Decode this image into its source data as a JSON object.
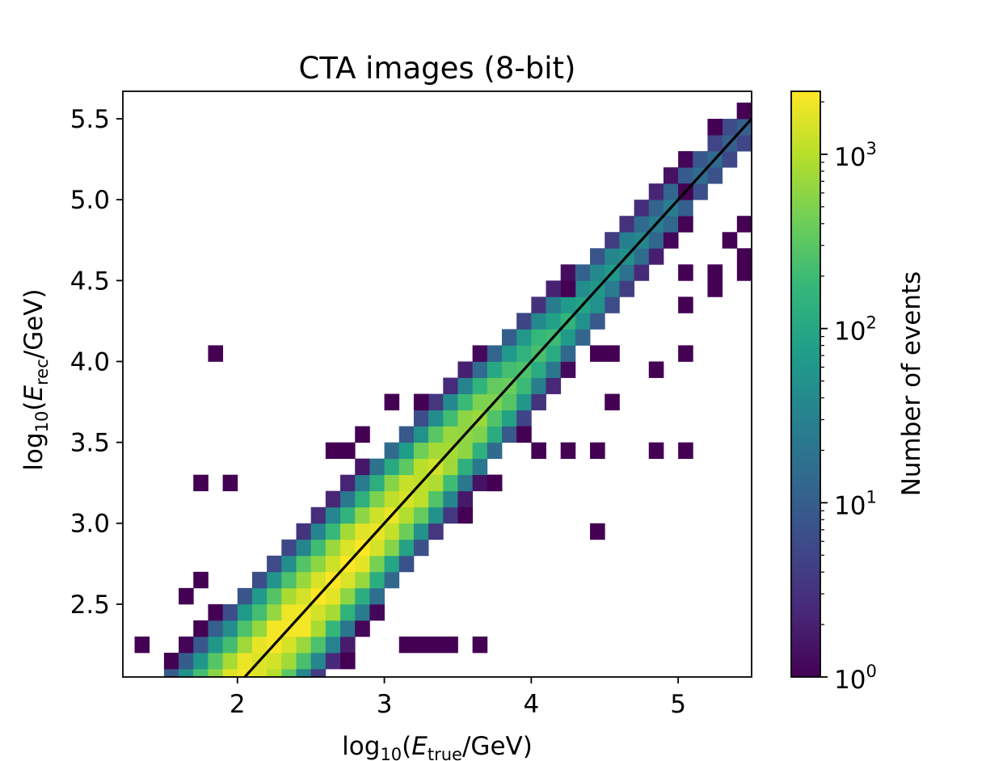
{
  "chart_data": {
    "type": "heatmap",
    "title": "CTA images (8-bit)",
    "xlabel": {
      "pre": "log",
      "sub1": "10",
      "open": "(",
      "var": "E",
      "sub2": "true",
      "post": "/GeV)"
    },
    "ylabel": {
      "pre": "log",
      "sub1": "10",
      "open": "(",
      "var": "E",
      "sub2": "rec",
      "post": "/GeV)"
    },
    "xlim": [
      1.22,
      5.5
    ],
    "ylim": [
      2.05,
      5.67
    ],
    "x_ticks": [
      2,
      3,
      4,
      5
    ],
    "x_tick_labels": [
      "2",
      "3",
      "4",
      "5"
    ],
    "y_ticks": [
      2.5,
      3.0,
      3.5,
      4.0,
      4.5,
      5.0,
      5.5
    ],
    "y_tick_labels": [
      "2.5",
      "3.0",
      "3.5",
      "4.0",
      "4.5",
      "5.0",
      "5.5"
    ],
    "bin_size": 0.1,
    "reference_line": {
      "x": [
        2.03,
        5.5
      ],
      "y": [
        2.03,
        5.5
      ],
      "color": "#000000"
    },
    "colorbar": {
      "label": "Number of events",
      "scale": "log",
      "colormap": "viridis",
      "range": [
        1,
        2300
      ],
      "ticks": [
        1,
        10,
        100,
        1000
      ],
      "tick_labels": [
        {
          "base": "10",
          "exp": "0"
        },
        {
          "base": "10",
          "exp": "1"
        },
        {
          "base": "10",
          "exp": "2"
        },
        {
          "base": "10",
          "exp": "3"
        }
      ]
    },
    "colormap_stops": [
      "#440154",
      "#482878",
      "#3e4989",
      "#31688e",
      "#26828e",
      "#1f9e89",
      "#35b779",
      "#6ece58",
      "#b5de2b",
      "#fde725"
    ],
    "band": {
      "peak_counts": 2300,
      "peak_x": 2.5,
      "width_start": 0.17,
      "width_end": 0.07,
      "y_offset": 0.0
    },
    "outlier_cells": [
      [
        1.85,
        4.1
      ],
      [
        1.75,
        3.3
      ],
      [
        1.75,
        2.65
      ],
      [
        1.6,
        2.5
      ],
      [
        1.3,
        2.3
      ],
      [
        1.95,
        3.2
      ],
      [
        3.55,
        3.05
      ],
      [
        4.45,
        2.95
      ],
      [
        3.1,
        2.2
      ],
      [
        3.35,
        2.3
      ],
      [
        3.6,
        2.3
      ],
      [
        3.45,
        2.25
      ],
      [
        3.2,
        2.3
      ],
      [
        2.8,
        2.1
      ],
      [
        4.25,
        3.45
      ],
      [
        4.45,
        3.45
      ],
      [
        4.85,
        3.45
      ],
      [
        5.05,
        3.45
      ],
      [
        4.6,
        3.7
      ],
      [
        4.85,
        3.95
      ],
      [
        5.05,
        4.05
      ],
      [
        4.4,
        4.1
      ],
      [
        4.55,
        4.0
      ],
      [
        5.05,
        4.35
      ],
      [
        5.1,
        4.5
      ],
      [
        5.3,
        4.45
      ],
      [
        5.45,
        4.5
      ],
      [
        5.25,
        4.55
      ],
      [
        5.4,
        4.65
      ],
      [
        5.45,
        4.85
      ],
      [
        5.35,
        4.75
      ],
      [
        5.2,
        5.4
      ],
      [
        5.45,
        5.5
      ],
      [
        5.45,
        5.6
      ],
      [
        5.0,
        5.1
      ],
      [
        4.2,
        4.4
      ],
      [
        3.3,
        3.75
      ],
      [
        3.05,
        3.75
      ],
      [
        2.65,
        3.4
      ],
      [
        2.75,
        3.45
      ],
      [
        2.85,
        3.5
      ],
      [
        3.7,
        3.25
      ],
      [
        3.8,
        3.2
      ],
      [
        4.0,
        3.45
      ],
      [
        3.95,
        3.5
      ]
    ]
  }
}
